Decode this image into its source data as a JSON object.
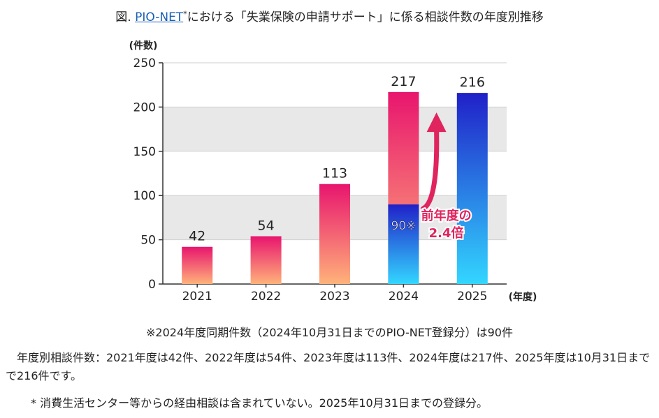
{
  "header": {
    "prefix": "図.",
    "link": "PIO-NET",
    "sup": "*",
    "rest": "における「失業保険の申請サポート」に係る相談件数の年度別推移"
  },
  "chart_data": {
    "type": "bar",
    "categories": [
      "2021",
      "2022",
      "2023",
      "2024",
      "2025"
    ],
    "values": [
      42,
      54,
      113,
      217,
      216
    ],
    "value_labels": [
      "42",
      "54",
      "113",
      "217",
      "216"
    ],
    "same_period_2024": 90,
    "same_period_label": "90※",
    "ylabel": "(件数)",
    "xlabel": "(年度)",
    "ylim": [
      0,
      250
    ],
    "yticks": [
      0,
      50,
      100,
      150,
      200,
      250
    ],
    "grid": true,
    "annotation_line1": "前年度の",
    "annotation_line2": "2.4倍",
    "colors": {
      "warm_top": "#e8156e",
      "warm_bottom": "#ffb27a",
      "cool_top": "#2020c8",
      "cool_bottom": "#33d6ff",
      "accent": "#e0245e",
      "grid_band": "#e8e8e8"
    }
  },
  "note": "※2024年度同期件数（2024年10月31日までのPIO-NET登録分）は90件",
  "description": "年度別相談件数：2021年度は42件、2022年度は54件、2023年度は113件、2024年度は217件、2025年度は10月31日までで216件です。",
  "footnote": "* 消費生活センター等からの経由相談は含まれていない。2025年10月31日までの登録分。"
}
